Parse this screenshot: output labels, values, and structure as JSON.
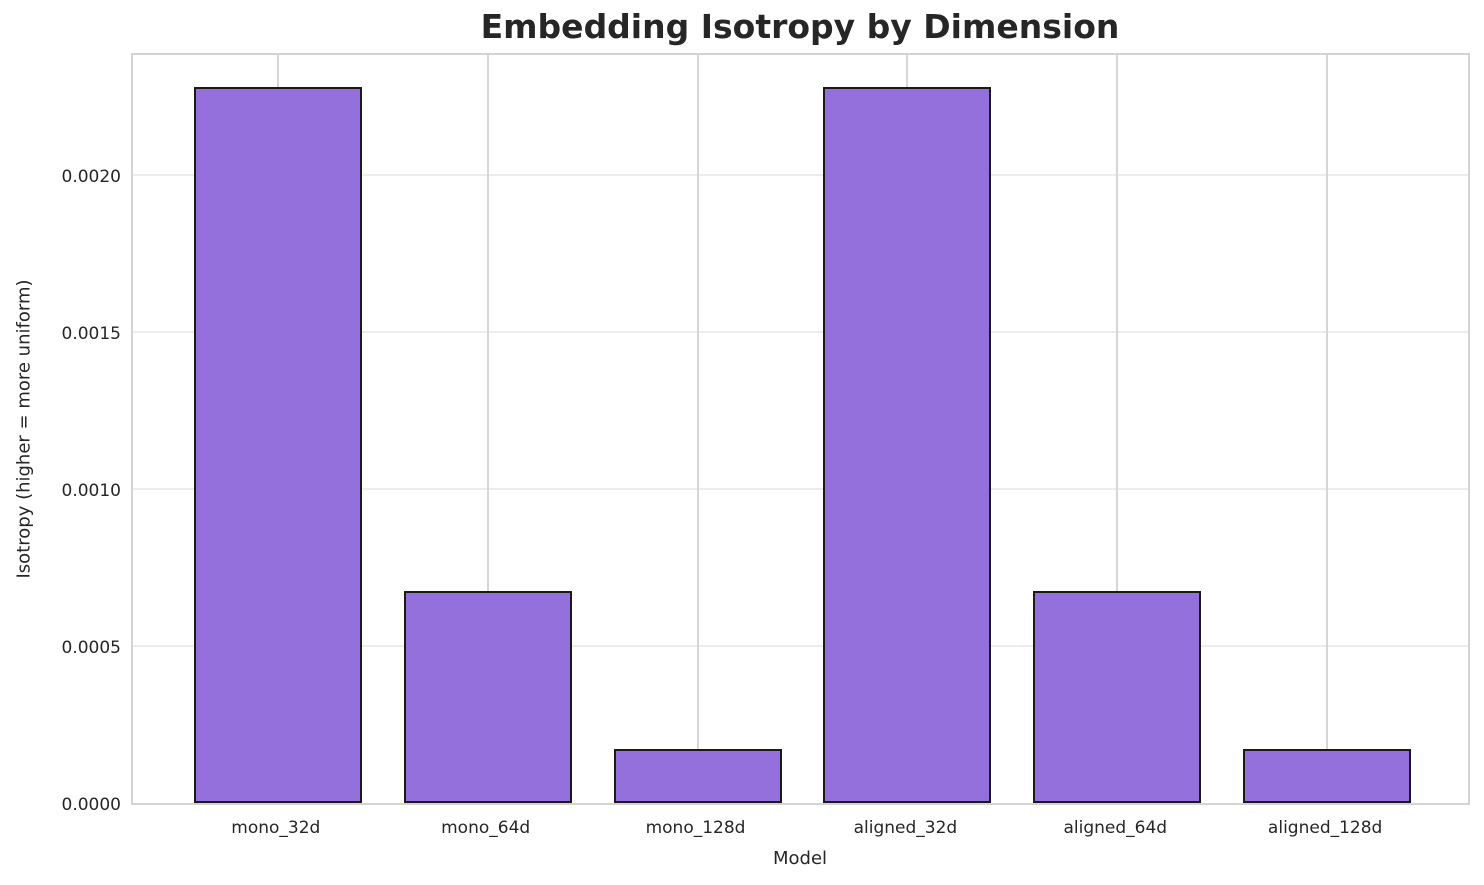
{
  "chart_data": {
    "type": "bar",
    "title": "Embedding Isotropy by Dimension",
    "xlabel": "Model",
    "ylabel": "Isotropy (higher = more uniform)",
    "categories": [
      "mono_32d",
      "mono_64d",
      "mono_128d",
      "aligned_32d",
      "aligned_64d",
      "aligned_128d"
    ],
    "values": [
      0.00228,
      0.000674,
      0.000172,
      0.00228,
      0.000674,
      0.000172
    ],
    "ylim": [
      0,
      0.002394
    ],
    "yticks": [
      0,
      0.0005,
      0.001,
      0.0015,
      0.002
    ],
    "ytick_labels": [
      "0.0000",
      "0.0005",
      "0.0010",
      "0.0015",
      "0.0020"
    ],
    "grid": true,
    "legend": "none",
    "bar_color": "#9370db",
    "bar_edge_color": "#1a1a1a",
    "grid_color_h": "#ececec",
    "grid_color_v": "#d6d6d6",
    "spine_color": "#d3d3d3",
    "text_color": "#262626"
  }
}
